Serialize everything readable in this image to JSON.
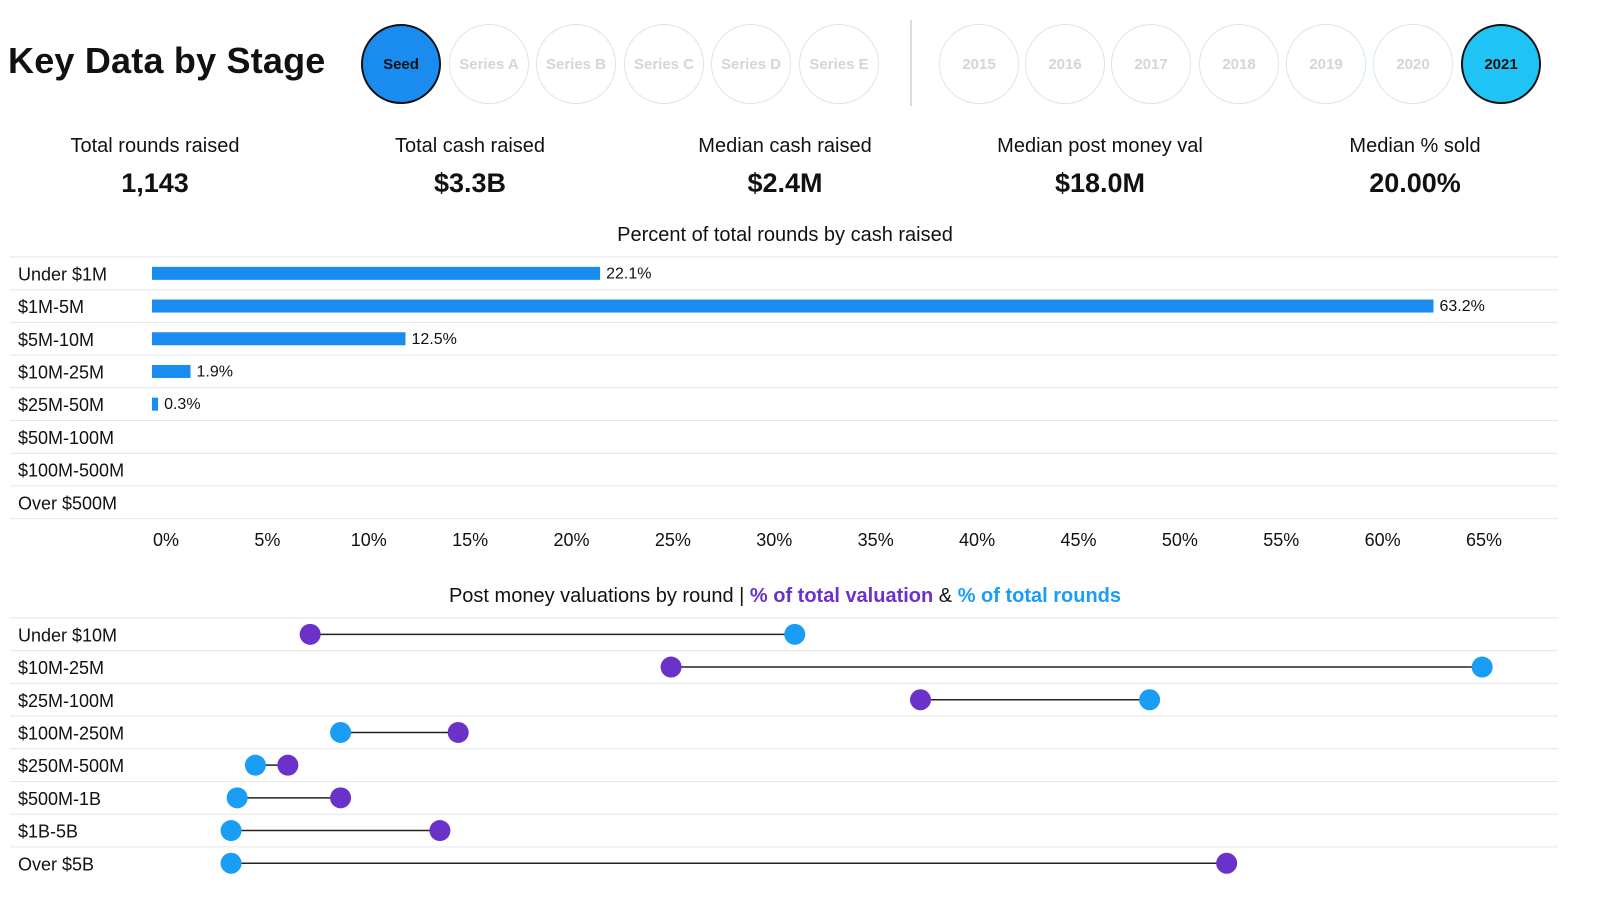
{
  "page": {
    "title": "Key Data by Stage"
  },
  "stages": [
    {
      "label": "Seed",
      "active": true
    },
    {
      "label": "Series A",
      "active": false
    },
    {
      "label": "Series B",
      "active": false
    },
    {
      "label": "Series C",
      "active": false
    },
    {
      "label": "Series D",
      "active": false
    },
    {
      "label": "Series E",
      "active": false
    }
  ],
  "years": [
    {
      "label": "2015",
      "active": false
    },
    {
      "label": "2016",
      "active": false
    },
    {
      "label": "2017",
      "active": false
    },
    {
      "label": "2018",
      "active": false
    },
    {
      "label": "2019",
      "active": false
    },
    {
      "label": "2020",
      "active": false
    },
    {
      "label": "2021",
      "active": true
    }
  ],
  "stats": [
    {
      "label": "Total rounds raised",
      "value": "1,143"
    },
    {
      "label": "Total cash raised",
      "value": "$3.3B"
    },
    {
      "label": "Median cash raised",
      "value": "$2.4M"
    },
    {
      "label": "Median post money val",
      "value": "$18.0M"
    },
    {
      "label": "Median % sold",
      "value": "20.00%"
    }
  ],
  "colors": {
    "bar": "#1a8cf0",
    "valuation": "#6a32c9",
    "rounds": "#1a9df5",
    "stage_active": "#1a8cf0",
    "year_active": "#20c4f4"
  },
  "chart_data": [
    {
      "type": "bar",
      "title": "Percent of total rounds by cash raised",
      "categories": [
        "Under $1M",
        "$1M-5M",
        "$5M-10M",
        "$10M-25M",
        "$25M-50M",
        "$50M-100M",
        "$100M-500M",
        "Over $500M"
      ],
      "values": [
        22.1,
        63.2,
        12.5,
        1.9,
        0.3,
        null,
        null,
        null
      ],
      "data_labels": [
        "22.1%",
        "63.2%",
        "12.5%",
        "1.9%",
        "0.3%",
        "",
        "",
        ""
      ],
      "xlim": [
        0,
        65
      ],
      "xticks": [
        "0%",
        "5%",
        "10%",
        "15%",
        "20%",
        "25%",
        "30%",
        "35%",
        "40%",
        "45%",
        "50%",
        "55%",
        "60%",
        "65%"
      ],
      "orientation": "horizontal",
      "grid": "horizontal row separators"
    },
    {
      "type": "scatter",
      "subtype": "dumbbell",
      "title_parts": {
        "main": "Post money valuations by round | ",
        "series1": "% of total valuation",
        "joiner": " & ",
        "series2": "% of total rounds"
      },
      "categories": [
        "Under $10M",
        "$10M-25M",
        "$25M-100M",
        "$100M-250M",
        "$250M-500M",
        "$500M-1B",
        "$1B-5B",
        "Over $5B"
      ],
      "series": [
        {
          "name": "% of total valuation",
          "values": [
            7.8,
            25.6,
            37.9,
            15.1,
            6.7,
            9.3,
            14.2,
            53.0
          ]
        },
        {
          "name": "% of total rounds",
          "values": [
            31.7,
            65.6,
            49.2,
            9.3,
            5.1,
            4.2,
            3.9,
            3.9
          ]
        }
      ],
      "xlim": [
        0,
        65
      ]
    }
  ]
}
